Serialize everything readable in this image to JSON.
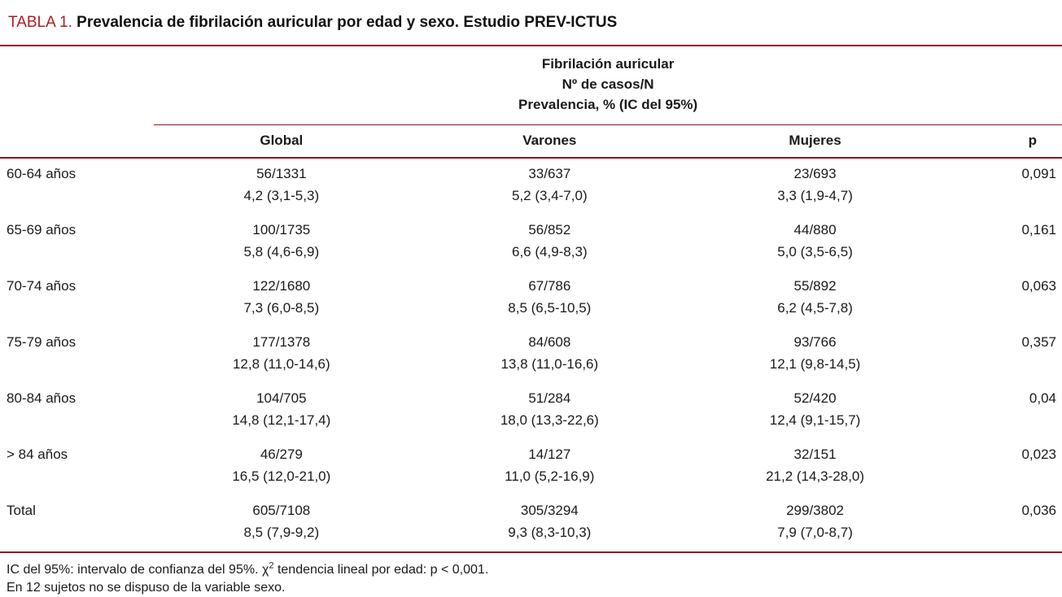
{
  "title": {
    "label": "TABLA 1.",
    "text": "Prevalencia de fibrilación auricular por edad y sexo. Estudio PREV-ICTUS"
  },
  "colors": {
    "accent_red_text": "#ae1c21",
    "rule_red": "#941418"
  },
  "table": {
    "spanner": {
      "line1": "Fibrilación auricular",
      "line2": "Nº de casos/N",
      "line3": "Prevalencia, % (IC del 95%)"
    },
    "columns": {
      "global": "Global",
      "varones": "Varones",
      "mujeres": "Mujeres",
      "p": "p"
    },
    "rows": [
      {
        "label": "60-64 años",
        "global": {
          "n": "56/1331",
          "prev": "4,2 (3,1-5,3)"
        },
        "varones": {
          "n": "33/637",
          "prev": "5,2 (3,4-7,0)"
        },
        "mujeres": {
          "n": "23/693",
          "prev": "3,3 (1,9-4,7)"
        },
        "p": "0,091"
      },
      {
        "label": "65-69 años",
        "global": {
          "n": "100/1735",
          "prev": "5,8 (4,6-6,9)"
        },
        "varones": {
          "n": "56/852",
          "prev": "6,6 (4,9-8,3)"
        },
        "mujeres": {
          "n": "44/880",
          "prev": "5,0 (3,5-6,5)"
        },
        "p": "0,161"
      },
      {
        "label": "70-74 años",
        "global": {
          "n": "122/1680",
          "prev": "7,3 (6,0-8,5)"
        },
        "varones": {
          "n": "67/786",
          "prev": "8,5 (6,5-10,5)"
        },
        "mujeres": {
          "n": "55/892",
          "prev": "6,2 (4,5-7,8)"
        },
        "p": "0,063"
      },
      {
        "label": "75-79 años",
        "global": {
          "n": "177/1378",
          "prev": "12,8 (11,0-14,6)"
        },
        "varones": {
          "n": "84/608",
          "prev": "13,8 (11,0-16,6)"
        },
        "mujeres": {
          "n": "93/766",
          "prev": "12,1 (9,8-14,5)"
        },
        "p": "0,357"
      },
      {
        "label": "80-84 años",
        "global": {
          "n": "104/705",
          "prev": "14,8 (12,1-17,4)"
        },
        "varones": {
          "n": "51/284",
          "prev": "18,0 (13,3-22,6)"
        },
        "mujeres": {
          "n": "52/420",
          "prev": "12,4 (9,1-15,7)"
        },
        "p": "0,04"
      },
      {
        "label": "> 84 años",
        "global": {
          "n": "46/279",
          "prev": "16,5 (12,0-21,0)"
        },
        "varones": {
          "n": "14/127",
          "prev": "11,0 (5,2-16,9)"
        },
        "mujeres": {
          "n": "32/151",
          "prev": "21,2 (14,3-28,0)"
        },
        "p": "0,023"
      },
      {
        "label": "Total",
        "global": {
          "n": "605/7108",
          "prev": "8,5 (7,9-9,2)"
        },
        "varones": {
          "n": "305/3294",
          "prev": "9,3 (8,3-10,3)"
        },
        "mujeres": {
          "n": "299/3802",
          "prev": "7,9 (7,0-8,7)"
        },
        "p": "0,036"
      }
    ]
  },
  "footnotes": {
    "line1_part1": "IC del 95%: intervalo de confianza del 95%. ",
    "chi": "χ",
    "chi_sup": "2",
    "line1_part2": " tendencia lineal por edad: p < 0,001.",
    "line2": "En 12 sujetos no se dispuso de la variable sexo."
  }
}
